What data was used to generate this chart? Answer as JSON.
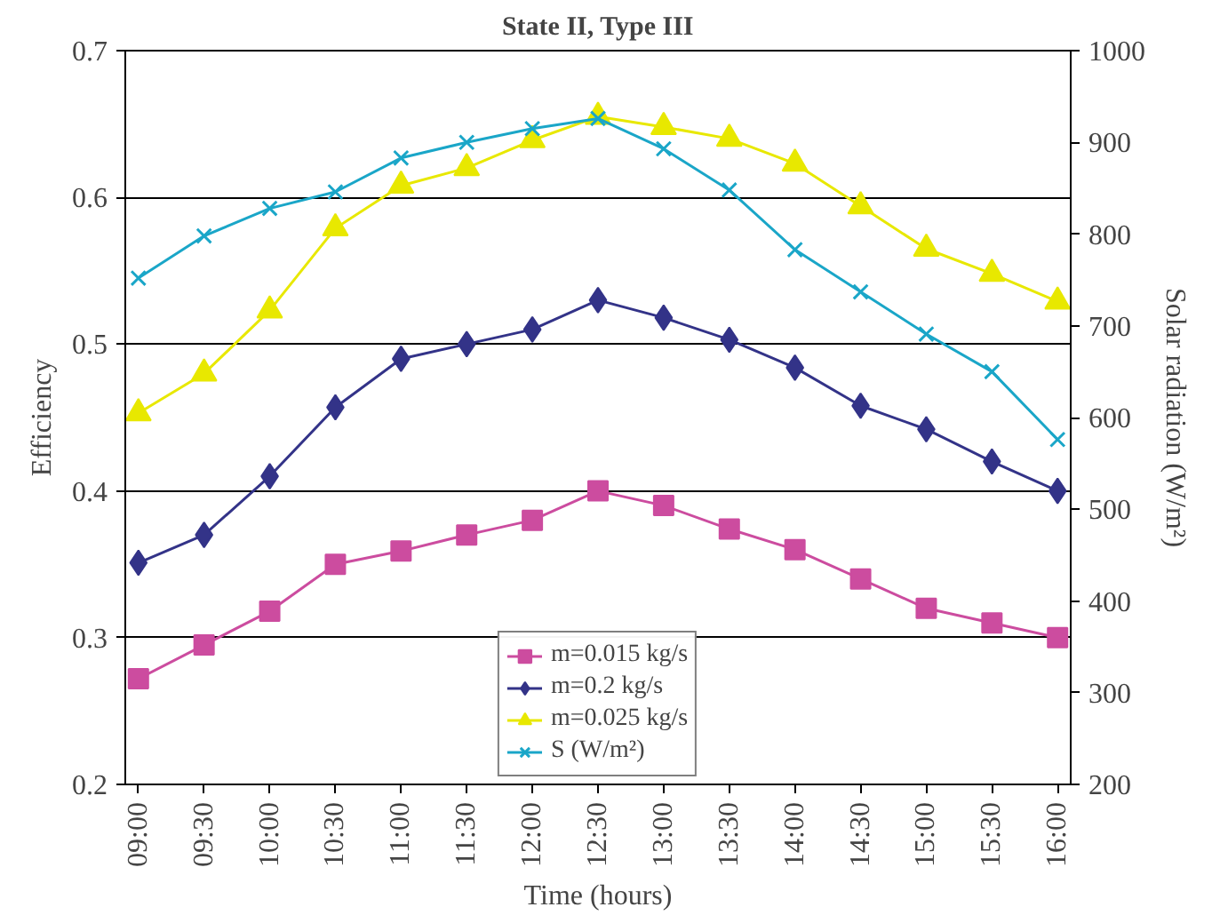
{
  "chart_data": {
    "type": "line",
    "title": "State II, Type III",
    "xlabel": "Time (hours)",
    "ylabel": "Efficiency",
    "y2label": "Solar radiation (W/m²)",
    "categories": [
      "09:00",
      "09:30",
      "10:00",
      "10:30",
      "11:00",
      "11:30",
      "12:00",
      "12:30",
      "13:00",
      "13:30",
      "14:00",
      "14:30",
      "15:00",
      "15:30",
      "16:00"
    ],
    "series": [
      {
        "name": "m=0.015 kg/s",
        "color": "#cc4c9f",
        "marker": "square",
        "values": [
          0.272,
          0.295,
          0.318,
          0.35,
          0.359,
          0.37,
          0.38,
          0.4,
          0.39,
          0.374,
          0.36,
          0.34,
          0.32,
          0.31,
          0.3
        ]
      },
      {
        "name": "m=0.2 kg/s",
        "color": "#333388",
        "marker": "diamond",
        "values": [
          0.351,
          0.37,
          0.41,
          0.457,
          0.49,
          0.5,
          0.51,
          0.53,
          0.518,
          0.503,
          0.484,
          0.458,
          0.442,
          0.42,
          0.4
        ]
      },
      {
        "name": "m=0.025 kg/s",
        "color": "#e8e800",
        "marker": "triangle",
        "values": [
          0.453,
          0.48,
          0.523,
          0.579,
          0.608,
          0.62,
          0.639,
          0.655,
          0.648,
          0.64,
          0.623,
          0.594,
          0.565,
          0.548,
          0.529
        ]
      },
      {
        "name": "S (W/m²)",
        "color": "#1aa6c8",
        "marker": "cross",
        "axis": "y2",
        "values": [
          752,
          798,
          828,
          846,
          883,
          900,
          915,
          926,
          893,
          848,
          783,
          737,
          691,
          650,
          576
        ]
      }
    ],
    "ylim": [
      0.2,
      0.7
    ],
    "yticks": [
      0.2,
      0.3,
      0.4,
      0.5,
      0.6,
      0.7
    ],
    "y2lim": [
      200,
      1000
    ],
    "y2ticks": [
      200,
      300,
      400,
      500,
      600,
      700,
      800,
      900,
      1000
    ],
    "grid": "y",
    "legend": "bottom"
  }
}
